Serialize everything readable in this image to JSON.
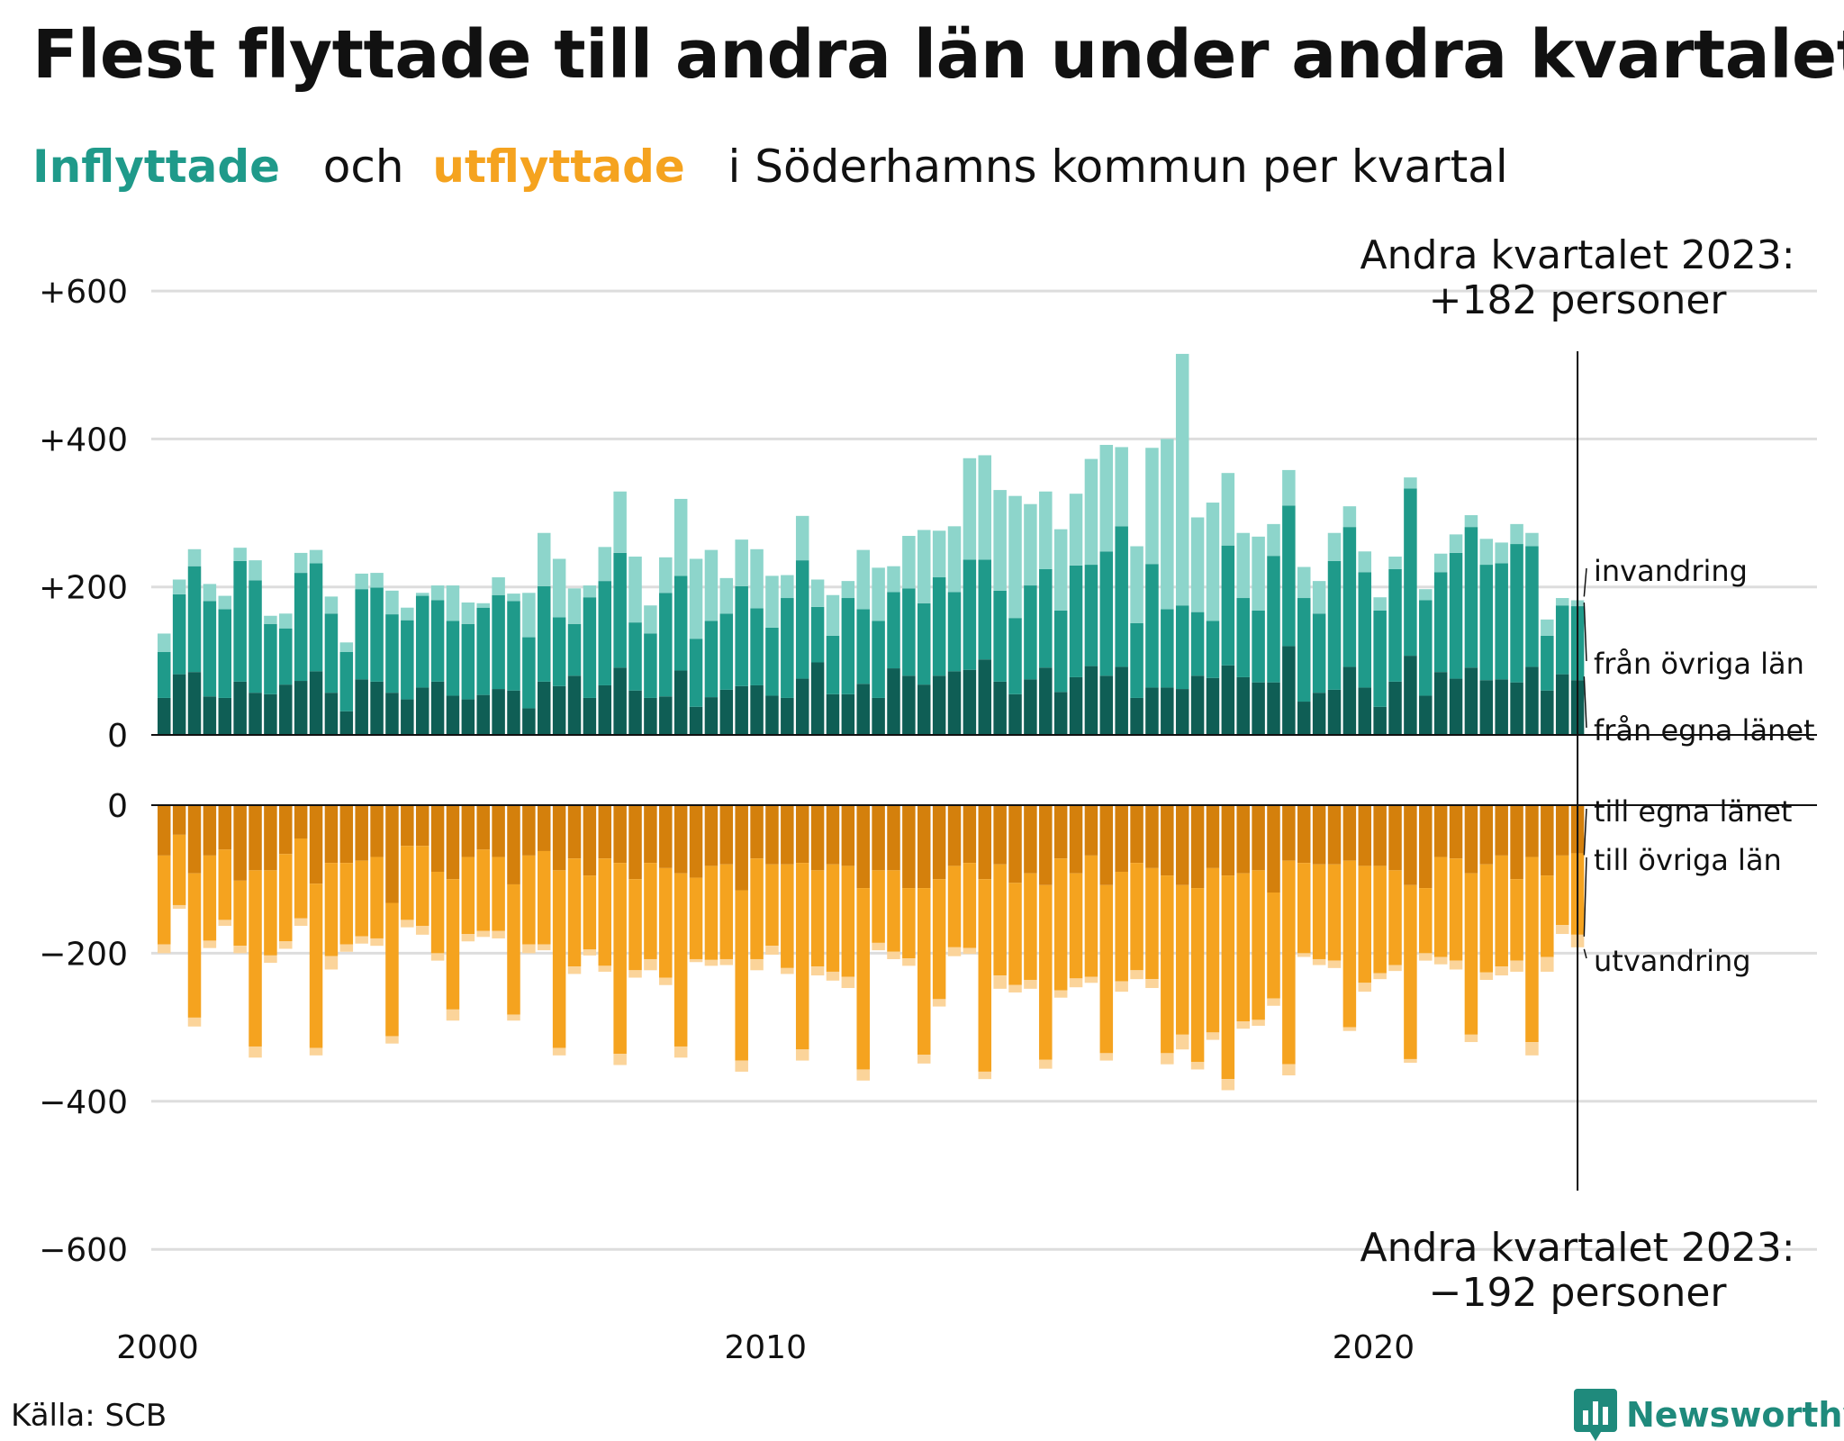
{
  "title": "Flest flyttade till andra län under andra kvartalet",
  "subtitle": {
    "in_word": "Inflyttade",
    "och": "och",
    "out_word": "utflyttade",
    "rest": "i Söderhamns kommun per kvartal"
  },
  "source": "Källa: SCB",
  "logo_text": "Newsworthy",
  "annotation_top": [
    "Andra kvartalet 2023:",
    "+182 personer"
  ],
  "annotation_bottom": [
    "Andra kvartalet 2023:",
    "−192 personer"
  ],
  "colors": {
    "in_own": "#0f5e55",
    "in_other": "#1f9a8a",
    "in_immig": "#8dd5cb",
    "out_own": "#d4800c",
    "out_other": "#f5a31f",
    "out_emig": "#fbd49a",
    "grid": "#dddddd"
  },
  "chart_data": [
    {
      "type": "bar",
      "stacked": true,
      "title": "Inflyttade",
      "ylim": [
        0,
        650
      ],
      "yticks": [
        0,
        200,
        400,
        600
      ],
      "ytick_labels": [
        "0",
        "+200",
        "+400",
        "+600"
      ],
      "series_labels": [
        "från egna länet",
        "från övriga län",
        "invandring"
      ],
      "series": [
        {
          "name": "från egna länet",
          "values": [
            50,
            82,
            85,
            52,
            50,
            72,
            57,
            55,
            68,
            73,
            86,
            57,
            32,
            75,
            72,
            57,
            48,
            64,
            72,
            53,
            48,
            54,
            62,
            60,
            36,
            72,
            66,
            80,
            50,
            67,
            91,
            60,
            50,
            52,
            87,
            38,
            51,
            61,
            66,
            67,
            53,
            50,
            76,
            98,
            55,
            55,
            69,
            50,
            90,
            80,
            68,
            80,
            86,
            88,
            102,
            72,
            55,
            75,
            91,
            58,
            78,
            93,
            80,
            92,
            50,
            64,
            64,
            62,
            80,
            77,
            94,
            78,
            71,
            71,
            120,
            45,
            57,
            61,
            92,
            64,
            38,
            72,
            107,
            53,
            85,
            76,
            91,
            74,
            75,
            71,
            92,
            60,
            82,
            74
          ]
        },
        {
          "name": "från övriga län",
          "values": [
            62,
            108,
            143,
            129,
            120,
            163,
            152,
            95,
            76,
            146,
            146,
            107,
            80,
            122,
            127,
            106,
            107,
            124,
            110,
            101,
            102,
            118,
            127,
            121,
            96,
            129,
            93,
            70,
            136,
            141,
            155,
            92,
            87,
            140,
            128,
            92,
            103,
            103,
            135,
            104,
            92,
            135,
            160,
            75,
            79,
            130,
            101,
            104,
            103,
            118,
            110,
            133,
            107,
            149,
            135,
            123,
            103,
            127,
            133,
            110,
            151,
            137,
            168,
            190,
            101,
            167,
            106,
            113,
            86,
            77,
            162,
            107,
            97,
            171,
            190,
            140,
            107,
            174,
            189,
            156,
            130,
            152,
            226,
            129,
            135,
            170,
            190,
            156,
            157,
            187,
            163,
            74,
            93,
            100
          ]
        },
        {
          "name": "invandring",
          "values": [
            25,
            20,
            23,
            23,
            18,
            18,
            27,
            11,
            20,
            27,
            18,
            23,
            13,
            21,
            20,
            32,
            17,
            4,
            20,
            48,
            29,
            6,
            24,
            10,
            60,
            72,
            79,
            48,
            16,
            46,
            83,
            89,
            38,
            48,
            104,
            108,
            96,
            48,
            63,
            80,
            70,
            31,
            60,
            37,
            55,
            23,
            80,
            72,
            35,
            71,
            99,
            63,
            89,
            137,
            141,
            136,
            165,
            110,
            105,
            110,
            97,
            143,
            144,
            107,
            104,
            157,
            230,
            340,
            128,
            160,
            98,
            88,
            100,
            43,
            48,
            42,
            44,
            38,
            28,
            28,
            18,
            17,
            15,
            15,
            25,
            25,
            16,
            35,
            28,
            27,
            18,
            22,
            10,
            8
          ]
        }
      ]
    },
    {
      "type": "bar",
      "stacked": true,
      "title": "Utflyttade",
      "ylim": [
        -680,
        0
      ],
      "yticks": [
        0,
        -200,
        -400,
        -600
      ],
      "ytick_labels": [
        "0",
        "−200",
        "−400",
        "−600"
      ],
      "series_labels": [
        "till egna länet",
        "till övriga län",
        "utvandring"
      ],
      "series": [
        {
          "name": "till egna länet",
          "values": [
            -68,
            -40,
            -92,
            -68,
            -60,
            -102,
            -88,
            -88,
            -66,
            -45,
            -106,
            -78,
            -78,
            -75,
            -70,
            -132,
            -55,
            -55,
            -90,
            -100,
            -70,
            -60,
            -70,
            -107,
            -68,
            -62,
            -88,
            -72,
            -95,
            -72,
            -78,
            -100,
            -78,
            -85,
            -92,
            -98,
            -82,
            -80,
            -115,
            -72,
            -80,
            -80,
            -78,
            -88,
            -80,
            -82,
            -112,
            -88,
            -88,
            -112,
            -112,
            -100,
            -82,
            -78,
            -100,
            -80,
            -105,
            -92,
            -108,
            -72,
            -92,
            -68,
            -108,
            -90,
            -78,
            -85,
            -95,
            -108,
            -112,
            -85,
            -95,
            -92,
            -88,
            -118,
            -75,
            -78,
            -80,
            -80,
            -75,
            -82,
            -82,
            -88,
            -108,
            -112,
            -70,
            -72,
            -92,
            -80,
            -68,
            -100,
            -70,
            -95,
            -68,
            -65
          ]
        },
        {
          "name": "till övriga län",
          "values": [
            -120,
            -95,
            -195,
            -115,
            -95,
            -88,
            -238,
            -115,
            -118,
            -108,
            -222,
            -126,
            -110,
            -102,
            -110,
            -180,
            -100,
            -108,
            -110,
            -176,
            -104,
            -110,
            -100,
            -176,
            -120,
            -126,
            -240,
            -146,
            -100,
            -145,
            -258,
            -123,
            -130,
            -148,
            -234,
            -110,
            -127,
            -128,
            -230,
            -136,
            -110,
            -140,
            -252,
            -130,
            -145,
            -150,
            -245,
            -98,
            -110,
            -95,
            -225,
            -162,
            -110,
            -115,
            -260,
            -150,
            -138,
            -144,
            -236,
            -178,
            -142,
            -164,
            -227,
            -148,
            -145,
            -150,
            -240,
            -202,
            -235,
            -222,
            -275,
            -200,
            -202,
            -143,
            -275,
            -122,
            -128,
            -130,
            -225,
            -158,
            -145,
            -128,
            -235,
            -88,
            -135,
            -138,
            -218,
            -146,
            -150,
            -110,
            -250,
            -110,
            -94,
            -110
          ]
        },
        {
          "name": "utvandring",
          "values": [
            -12,
            -5,
            -12,
            -10,
            -8,
            -10,
            -15,
            -10,
            -10,
            -10,
            -10,
            -18,
            -10,
            -10,
            -10,
            -10,
            -10,
            -12,
            -10,
            -15,
            -10,
            -8,
            -10,
            -8,
            -12,
            -8,
            -10,
            -10,
            -8,
            -8,
            -15,
            -10,
            -15,
            -10,
            -15,
            -4,
            -8,
            -8,
            -15,
            -15,
            -12,
            -8,
            -15,
            -12,
            -12,
            -15,
            -15,
            -10,
            -10,
            -10,
            -12,
            -10,
            -12,
            -8,
            -10,
            -18,
            -10,
            -12,
            -12,
            -10,
            -12,
            -8,
            -10,
            -14,
            -12,
            -12,
            -15,
            -20,
            -10,
            -10,
            -15,
            -10,
            -8,
            -10,
            -15,
            -5,
            -8,
            -10,
            -5,
            -12,
            -8,
            -8,
            -5,
            -10,
            -10,
            -12,
            -10,
            -10,
            -12,
            -15,
            -18,
            -20,
            -12,
            -17
          ]
        }
      ]
    }
  ],
  "x_axis": {
    "start_year": 2000,
    "tick_labels": [
      "2000",
      "2010",
      "2020"
    ]
  }
}
